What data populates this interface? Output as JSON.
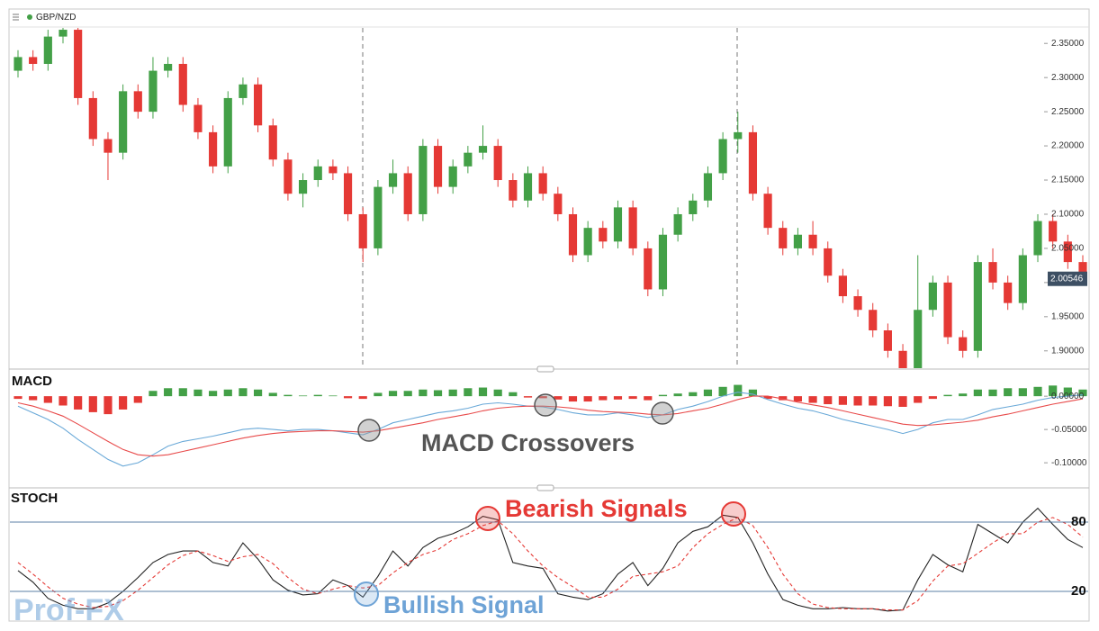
{
  "chart_data": [
    {
      "type": "candlestick",
      "title": "GBP/NZD",
      "up_color": "#43a047",
      "down_color": "#e53935",
      "open": [
        2.31,
        2.33,
        2.32,
        2.36,
        2.37,
        2.27,
        2.21,
        2.19,
        2.28,
        2.25,
        2.31,
        2.32,
        2.26,
        2.22,
        2.17,
        2.27,
        2.29,
        2.23,
        2.18,
        2.13,
        2.15,
        2.17,
        2.16,
        2.1,
        2.05,
        2.14,
        2.16,
        2.1,
        2.2,
        2.14,
        2.17,
        2.19,
        2.2,
        2.15,
        2.12,
        2.16,
        2.13,
        2.1,
        2.04,
        2.08,
        2.06,
        2.11,
        2.05,
        1.99,
        2.07,
        2.1,
        2.12,
        2.16,
        2.21,
        2.22,
        2.13,
        2.08,
        2.05,
        2.07,
        2.05,
        2.01,
        1.98,
        1.96,
        1.93,
        1.9,
        1.87,
        1.96,
        2.0,
        1.92,
        1.9,
        2.03,
        2.0,
        1.97,
        2.04,
        2.09,
        2.06,
        2.03
      ],
      "high": [
        2.34,
        2.34,
        2.37,
        2.38,
        2.38,
        2.28,
        2.22,
        2.29,
        2.29,
        2.33,
        2.33,
        2.33,
        2.27,
        2.23,
        2.28,
        2.3,
        2.3,
        2.24,
        2.19,
        2.16,
        2.18,
        2.18,
        2.17,
        2.11,
        2.15,
        2.18,
        2.17,
        2.21,
        2.21,
        2.18,
        2.2,
        2.23,
        2.21,
        2.16,
        2.17,
        2.17,
        2.14,
        2.11,
        2.09,
        2.09,
        2.12,
        2.12,
        2.06,
        2.08,
        2.11,
        2.13,
        2.17,
        2.22,
        2.25,
        2.23,
        2.14,
        2.09,
        2.08,
        2.09,
        2.06,
        2.02,
        1.99,
        1.97,
        1.94,
        1.91,
        2.04,
        2.01,
        2.01,
        1.93,
        2.04,
        2.05,
        2.01,
        2.05,
        2.1,
        2.1,
        2.07,
        2.04
      ],
      "low": [
        2.3,
        2.31,
        2.31,
        2.35,
        2.26,
        2.2,
        2.15,
        2.18,
        2.24,
        2.24,
        2.3,
        2.25,
        2.21,
        2.16,
        2.16,
        2.26,
        2.22,
        2.17,
        2.12,
        2.11,
        2.14,
        2.15,
        2.09,
        2.03,
        2.04,
        2.13,
        2.09,
        2.09,
        2.13,
        2.13,
        2.16,
        2.18,
        2.14,
        2.11,
        2.11,
        2.12,
        2.09,
        2.03,
        2.03,
        2.05,
        2.05,
        2.04,
        1.98,
        1.98,
        2.06,
        2.09,
        2.11,
        2.15,
        2.19,
        2.12,
        2.07,
        2.04,
        2.04,
        2.04,
        2.0,
        1.97,
        1.95,
        1.92,
        1.89,
        1.86,
        1.86,
        1.95,
        1.91,
        1.89,
        1.89,
        1.99,
        1.96,
        1.96,
        2.03,
        2.05,
        2.02,
        2.0
      ],
      "close": [
        2.33,
        2.32,
        2.36,
        2.37,
        2.27,
        2.21,
        2.19,
        2.28,
        2.25,
        2.31,
        2.32,
        2.26,
        2.22,
        2.17,
        2.27,
        2.29,
        2.23,
        2.18,
        2.13,
        2.15,
        2.17,
        2.16,
        2.1,
        2.05,
        2.14,
        2.16,
        2.1,
        2.2,
        2.14,
        2.17,
        2.19,
        2.2,
        2.15,
        2.12,
        2.16,
        2.13,
        2.1,
        2.04,
        2.08,
        2.06,
        2.11,
        2.05,
        1.99,
        2.07,
        2.1,
        2.12,
        2.16,
        2.21,
        2.22,
        2.13,
        2.08,
        2.05,
        2.07,
        2.05,
        2.01,
        1.98,
        1.96,
        1.93,
        1.9,
        1.87,
        1.96,
        2.0,
        1.92,
        1.9,
        2.03,
        2.0,
        1.97,
        2.04,
        2.09,
        2.06,
        2.03,
        2.005
      ],
      "last_price": 2.00546,
      "ylim": [
        1.876,
        2.374
      ],
      "yticks": [
        {
          "value": 1.9,
          "label": "1.90000"
        },
        {
          "value": 1.95,
          "label": "1.95000"
        },
        {
          "value": 2.0,
          "label": "2.00000"
        },
        {
          "value": 2.05,
          "label": "2.05000"
        },
        {
          "value": 2.1,
          "label": "2.10000"
        },
        {
          "value": 2.15,
          "label": "2.15000"
        },
        {
          "value": 2.2,
          "label": "2.20000"
        },
        {
          "value": 2.25,
          "label": "2.25000"
        },
        {
          "value": 2.3,
          "label": "2.30000"
        },
        {
          "value": 2.35,
          "label": "2.35000"
        }
      ]
    },
    {
      "type": "macd",
      "title": "MACD",
      "annotation": "MACD Crossovers",
      "histogram": {
        "up_color": "#43a047",
        "down_color": "#e53935",
        "values": [
          -0.004,
          -0.006,
          -0.01,
          -0.014,
          -0.02,
          -0.024,
          -0.027,
          -0.02,
          -0.01,
          0.008,
          0.012,
          0.012,
          0.01,
          0.008,
          0.01,
          0.012,
          0.01,
          0.005,
          0.002,
          0.001,
          0.002,
          0.001,
          -0.003,
          -0.004,
          0.005,
          0.008,
          0.008,
          0.01,
          0.009,
          0.01,
          0.012,
          0.013,
          0.01,
          0.006,
          -0.002,
          -0.003,
          -0.005,
          -0.008,
          -0.008,
          -0.006,
          -0.005,
          -0.004,
          -0.006,
          0.002,
          0.004,
          0.006,
          0.01,
          0.014,
          0.017,
          0.01,
          -0.004,
          -0.006,
          -0.008,
          -0.01,
          -0.012,
          -0.013,
          -0.014,
          -0.014,
          -0.015,
          -0.016,
          -0.01,
          -0.004,
          0.002,
          0.004,
          0.01,
          0.01,
          0.012,
          0.012,
          0.014,
          0.016,
          0.013,
          0.01
        ]
      },
      "lines": [
        {
          "color": "#6aa9d8",
          "values": [
            -0.015,
            -0.025,
            -0.035,
            -0.048,
            -0.065,
            -0.08,
            -0.095,
            -0.105,
            -0.1,
            -0.088,
            -0.075,
            -0.068,
            -0.064,
            -0.06,
            -0.055,
            -0.05,
            -0.048,
            -0.05,
            -0.052,
            -0.05,
            -0.05,
            -0.052,
            -0.055,
            -0.058,
            -0.05,
            -0.04,
            -0.035,
            -0.03,
            -0.025,
            -0.022,
            -0.018,
            -0.012,
            -0.01,
            -0.012,
            -0.015,
            -0.016,
            -0.02,
            -0.025,
            -0.028,
            -0.028,
            -0.025,
            -0.028,
            -0.032,
            -0.028,
            -0.02,
            -0.015,
            -0.008,
            0.0,
            0.006,
            0.003,
            -0.005,
            -0.012,
            -0.018,
            -0.022,
            -0.028,
            -0.035,
            -0.04,
            -0.045,
            -0.05,
            -0.056,
            -0.05,
            -0.04,
            -0.035,
            -0.035,
            -0.028,
            -0.02,
            -0.016,
            -0.012,
            -0.006,
            -0.002,
            0.0,
            0.002
          ]
        },
        {
          "color": "#e84a4a",
          "values": [
            -0.01,
            -0.015,
            -0.022,
            -0.03,
            -0.042,
            -0.055,
            -0.068,
            -0.08,
            -0.088,
            -0.09,
            -0.088,
            -0.083,
            -0.078,
            -0.073,
            -0.068,
            -0.063,
            -0.059,
            -0.056,
            -0.054,
            -0.053,
            -0.052,
            -0.052,
            -0.053,
            -0.054,
            -0.052,
            -0.048,
            -0.044,
            -0.04,
            -0.035,
            -0.031,
            -0.027,
            -0.022,
            -0.018,
            -0.016,
            -0.015,
            -0.015,
            -0.016,
            -0.018,
            -0.021,
            -0.023,
            -0.024,
            -0.025,
            -0.027,
            -0.028,
            -0.026,
            -0.022,
            -0.018,
            -0.012,
            -0.005,
            0.0,
            0.0,
            -0.004,
            -0.009,
            -0.013,
            -0.017,
            -0.022,
            -0.027,
            -0.032,
            -0.037,
            -0.042,
            -0.044,
            -0.043,
            -0.041,
            -0.039,
            -0.036,
            -0.031,
            -0.027,
            -0.022,
            -0.017,
            -0.012,
            -0.008,
            -0.004
          ]
        }
      ],
      "ylim": [
        -0.135,
        0.034
      ],
      "yticks": [
        {
          "value": -0.1,
          "label": "-0.10000"
        },
        {
          "value": -0.05,
          "label": "-0.05000"
        },
        {
          "value": 0,
          "label": "0.00000"
        }
      ]
    },
    {
      "type": "stochastic",
      "title": "STOCH",
      "annotations": [
        "Bearish Signals",
        "Bullish Signal"
      ],
      "lines": [
        {
          "color": "#222222",
          "dashed": false,
          "values": [
            38,
            28,
            14,
            8,
            5,
            5,
            10,
            20,
            32,
            45,
            52,
            55,
            55,
            45,
            42,
            62,
            48,
            30,
            21,
            17,
            18,
            30,
            25,
            15,
            33,
            55,
            42,
            58,
            66,
            70,
            76,
            85,
            82,
            45,
            42,
            40,
            18,
            15,
            13,
            18,
            35,
            45,
            25,
            40,
            62,
            72,
            76,
            86,
            84,
            62,
            35,
            13,
            8,
            5,
            5,
            6,
            5,
            5,
            3,
            4,
            30,
            52,
            43,
            37,
            78,
            70,
            62,
            80,
            92,
            78,
            65,
            58
          ]
        },
        {
          "color": "#e53935",
          "dashed": true,
          "values": [
            45,
            35,
            24,
            14,
            9,
            6,
            7,
            12,
            21,
            32,
            43,
            51,
            55,
            51,
            46,
            50,
            52,
            44,
            32,
            22,
            18,
            22,
            25,
            23,
            25,
            36,
            45,
            52,
            56,
            65,
            70,
            77,
            81,
            70,
            55,
            42,
            32,
            24,
            15,
            15,
            22,
            33,
            35,
            37,
            42,
            58,
            70,
            78,
            84,
            77,
            58,
            35,
            18,
            9,
            6,
            5,
            5,
            5,
            4,
            4,
            12,
            29,
            42,
            44,
            53,
            62,
            70,
            70,
            80,
            84,
            78,
            67
          ]
        }
      ],
      "ylim": [
        -5.7,
        107.3
      ],
      "yticks": [
        20,
        80
      ]
    }
  ],
  "watermark": "Prof-FX"
}
